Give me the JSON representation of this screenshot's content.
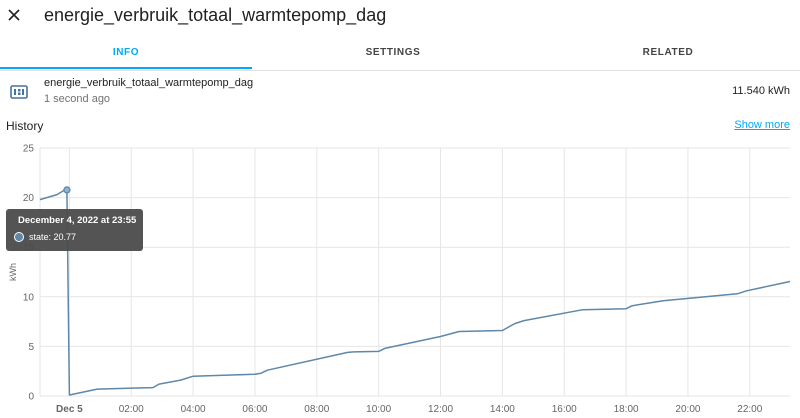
{
  "dialog": {
    "title": "energie_verbruik_totaal_warmtepomp_dag",
    "close_icon": "close-icon"
  },
  "tabs": [
    {
      "label": "INFO",
      "active": true
    },
    {
      "label": "SETTINGS",
      "active": false
    },
    {
      "label": "RELATED",
      "active": false
    }
  ],
  "entity": {
    "icon": "counter-icon",
    "name": "energie_verbruik_totaal_warmtepomp_dag",
    "last_changed": "1 second ago",
    "state": "11.540 kWh"
  },
  "history": {
    "label": "History",
    "show_more": "Show more"
  },
  "tooltip": {
    "title": "December 4, 2022 at 23:55",
    "text": "state: 20.77"
  },
  "colors": {
    "accent": "#03a9f4",
    "series": "#5e87a8"
  },
  "chart_data": {
    "type": "line",
    "ylabel": "kWh",
    "ylim": [
      0,
      25
    ],
    "yticks": [
      0,
      5,
      10,
      15,
      20,
      25
    ],
    "xlim": [
      -0.95,
      23.3
    ],
    "xticks": [
      {
        "x": 0,
        "label": "Dec 5"
      },
      {
        "x": 2,
        "label": "02:00"
      },
      {
        "x": 4,
        "label": "04:00"
      },
      {
        "x": 6,
        "label": "06:00"
      },
      {
        "x": 8,
        "label": "08:00"
      },
      {
        "x": 10,
        "label": "10:00"
      },
      {
        "x": 12,
        "label": "12:00"
      },
      {
        "x": 14,
        "label": "14:00"
      },
      {
        "x": 16,
        "label": "16:00"
      },
      {
        "x": 18,
        "label": "18:00"
      },
      {
        "x": 20,
        "label": "20:00"
      },
      {
        "x": 22,
        "label": "22:00"
      }
    ],
    "grid": true,
    "series": [
      {
        "x": [
          -0.95,
          -0.4,
          -0.15,
          -0.08,
          0.0,
          0.9,
          2.7,
          2.9,
          3.6,
          4.0,
          6.0,
          6.2,
          6.4,
          9.0,
          9.2,
          10.0,
          10.2,
          12.0,
          12.6,
          14.0,
          14.4,
          14.7,
          16.6,
          18.0,
          18.2,
          19.2,
          21.6,
          21.9,
          23.3
        ],
        "y": [
          19.8,
          20.3,
          20.77,
          20.77,
          0.1,
          0.7,
          0.85,
          1.2,
          1.6,
          2.0,
          2.2,
          2.3,
          2.6,
          4.4,
          4.45,
          4.5,
          4.8,
          6.0,
          6.5,
          6.6,
          7.3,
          7.6,
          8.7,
          8.8,
          9.1,
          9.6,
          10.3,
          10.6,
          11.54
        ]
      }
    ],
    "highlight": {
      "x": -0.08,
      "y": 20.77
    }
  }
}
